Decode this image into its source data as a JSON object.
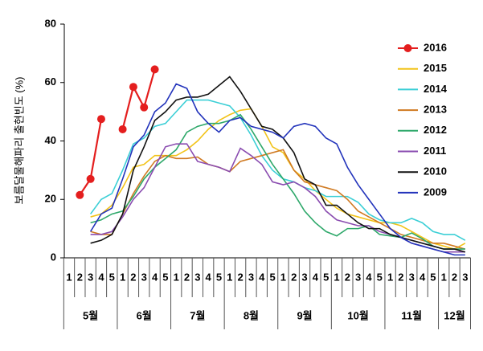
{
  "chart_data": {
    "type": "line",
    "y_label": "보름달물해파리 출현빈도 (%)",
    "categories": [
      "1",
      "2",
      "3",
      "4",
      "5",
      "1",
      "2",
      "3",
      "4",
      "5",
      "1",
      "2",
      "3",
      "4",
      "5",
      "1",
      "2",
      "3",
      "4",
      "5",
      "1",
      "2",
      "3",
      "4",
      "5",
      "1",
      "2",
      "3",
      "4",
      "5",
      "1",
      "2",
      "3",
      "4",
      "5",
      "1",
      "2",
      "3"
    ],
    "months": [
      "5월",
      "6월",
      "7월",
      "8월",
      "9월",
      "10월",
      "11월",
      "12월"
    ],
    "ylim": [
      0,
      80
    ],
    "yticks": [
      0,
      20,
      40,
      60,
      80
    ],
    "grid": false,
    "legend": "right",
    "series": [
      {
        "name": "2016",
        "color": "#e41e1e",
        "markers": true,
        "values": [
          null,
          21.5,
          27,
          47.5,
          null,
          44,
          58.5,
          51.5,
          64.5,
          null,
          null,
          null,
          null,
          null,
          null,
          null,
          null,
          null,
          null,
          null,
          null,
          null,
          null,
          null,
          null,
          null,
          null,
          null,
          null,
          null,
          null,
          null,
          null,
          null,
          null,
          null,
          null,
          null
        ]
      },
      {
        "name": "2015",
        "color": "#f2c31a",
        "values": [
          null,
          null,
          14,
          15,
          18,
          24,
          31,
          32,
          35,
          35,
          35,
          37,
          40,
          44,
          47,
          49,
          50.5,
          51,
          45,
          38,
          36,
          30,
          27,
          23,
          20,
          17,
          15,
          14,
          13,
          12,
          12,
          11,
          9,
          7,
          5,
          4,
          3,
          5
        ]
      },
      {
        "name": "2014",
        "color": "#3ccfd6",
        "values": [
          null,
          null,
          15,
          20,
          22,
          30,
          39,
          41,
          45,
          46,
          50,
          54,
          54,
          54,
          53,
          52,
          48,
          42,
          35,
          30,
          27,
          26,
          24,
          23,
          21,
          21,
          21,
          19,
          15,
          13,
          12,
          12,
          13.5,
          12,
          9,
          8,
          8,
          6
        ]
      },
      {
        "name": "2013",
        "color": "#d07a22",
        "values": [
          null,
          null,
          9,
          8,
          8,
          15,
          22,
          28,
          33,
          35,
          34,
          34,
          34.5,
          32,
          31,
          29.5,
          33,
          34,
          35,
          36,
          37,
          30,
          26,
          25,
          24,
          23,
          20,
          16,
          14,
          12,
          10,
          8,
          7,
          6,
          5,
          5,
          4,
          3
        ]
      },
      {
        "name": "2012",
        "color": "#2ea86a",
        "values": [
          null,
          null,
          12,
          13,
          15,
          16,
          21,
          27,
          31,
          34,
          37,
          43,
          45,
          46,
          46,
          47,
          49,
          44,
          38,
          32,
          27,
          22,
          16,
          12,
          9,
          7.5,
          10,
          10,
          11,
          8,
          7.5,
          7,
          8.5,
          6.5,
          4,
          3,
          3,
          3
        ]
      },
      {
        "name": "2011",
        "color": "#8a4cb0",
        "values": [
          null,
          null,
          8,
          8,
          9,
          14,
          20,
          24,
          31,
          38,
          39,
          39,
          33,
          32,
          31,
          29.5,
          37.5,
          35,
          32,
          26,
          25,
          26,
          24,
          21,
          16,
          13,
          12,
          11,
          11,
          9,
          8,
          7,
          5,
          4,
          3,
          2,
          2,
          2
        ]
      },
      {
        "name": "2010",
        "color": "#111111",
        "values": [
          null,
          null,
          5,
          6,
          8,
          15,
          30,
          38,
          47,
          50,
          54,
          55,
          55,
          56,
          59,
          62,
          57,
          51,
          45,
          44,
          41,
          36,
          27,
          25,
          18,
          18,
          15,
          12,
          10,
          10,
          8,
          7,
          6,
          5,
          4,
          3,
          3,
          2
        ]
      },
      {
        "name": "2009",
        "color": "#2233bb",
        "values": [
          null,
          null,
          9,
          15,
          17,
          27,
          38,
          42,
          50,
          53,
          59.5,
          58,
          50,
          46,
          43,
          47,
          48,
          45,
          44,
          43,
          41,
          45,
          46,
          45,
          41,
          39,
          31,
          25,
          20,
          15,
          10,
          7,
          5,
          4,
          3,
          2,
          1,
          1
        ]
      }
    ]
  }
}
